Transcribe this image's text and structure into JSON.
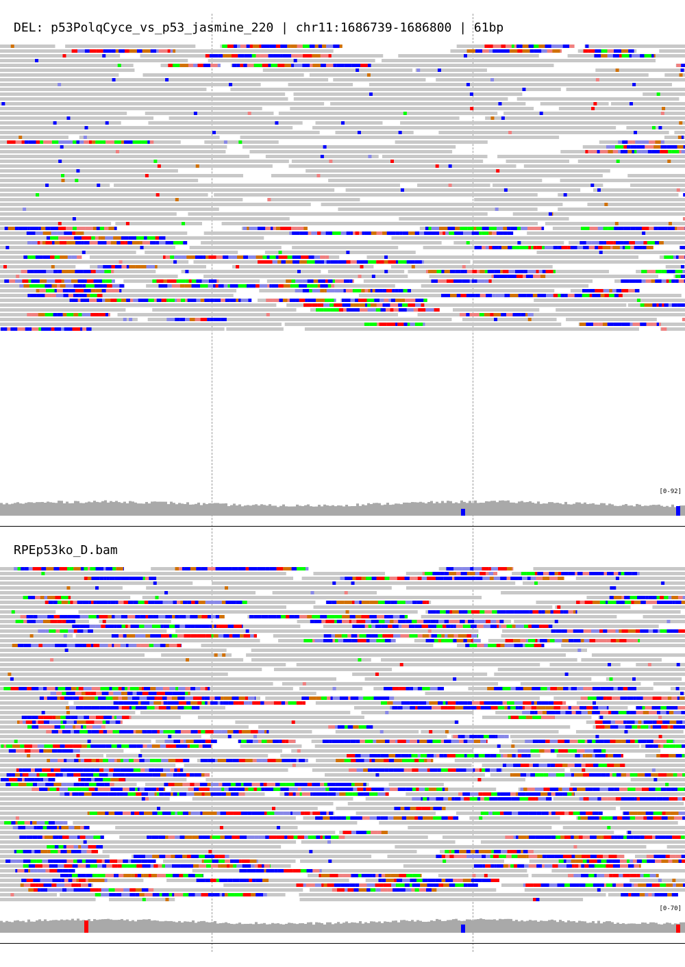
{
  "panels": [
    {
      "title": "DEL: p53PolqCyce_vs_p53_jasmine_220 | chr11:1686739-1686800 | 61bp",
      "coverage_range": "[0-92]"
    },
    {
      "title": "RPEp53ko_D.bam",
      "coverage_range": "[0-70]"
    }
  ],
  "colors": {
    "read": "#c8c8c8",
    "coverage": "#a9a9a9",
    "base_A": "#00ff00",
    "base_C": "#0000ff",
    "base_G": "#d17105",
    "base_T": "#ff0000",
    "faded_C": "#8888e8",
    "faded_T": "#f08080",
    "guide": "#9a9a9a"
  }
}
